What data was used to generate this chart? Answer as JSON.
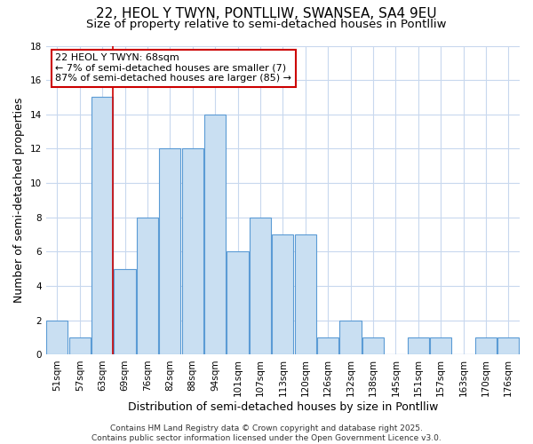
{
  "title": "22, HEOL Y TWYN, PONTLLIW, SWANSEA, SA4 9EU",
  "subtitle": "Size of property relative to semi-detached houses in Pontlliw",
  "xlabel": "Distribution of semi-detached houses by size in Pontlliw",
  "ylabel": "Number of semi-detached properties",
  "categories": [
    "51sqm",
    "57sqm",
    "63sqm",
    "69sqm",
    "76sqm",
    "82sqm",
    "88sqm",
    "94sqm",
    "101sqm",
    "107sqm",
    "113sqm",
    "120sqm",
    "126sqm",
    "132sqm",
    "138sqm",
    "145sqm",
    "151sqm",
    "157sqm",
    "163sqm",
    "170sqm",
    "176sqm"
  ],
  "values": [
    2,
    1,
    15,
    5,
    8,
    12,
    12,
    14,
    6,
    8,
    7,
    7,
    1,
    2,
    1,
    0,
    1,
    1,
    0,
    1,
    1
  ],
  "bar_color": "#c9dff2",
  "bar_edge_color": "#5b9bd5",
  "highlight_line_index": 2,
  "highlight_color": "#cc0000",
  "annotation_text": "22 HEOL Y TWYN: 68sqm\n← 7% of semi-detached houses are smaller (7)\n87% of semi-detached houses are larger (85) →",
  "annotation_box_color": "#cc0000",
  "ylim": [
    0,
    18
  ],
  "yticks": [
    0,
    2,
    4,
    6,
    8,
    10,
    12,
    14,
    16,
    18
  ],
  "footer": "Contains HM Land Registry data © Crown copyright and database right 2025.\nContains public sector information licensed under the Open Government Licence v3.0.",
  "bg_color": "#ffffff",
  "grid_color": "#c8d8ee",
  "title_fontsize": 11,
  "subtitle_fontsize": 9.5,
  "axis_label_fontsize": 9,
  "tick_fontsize": 7.5,
  "annotation_fontsize": 8,
  "footer_fontsize": 6.5
}
